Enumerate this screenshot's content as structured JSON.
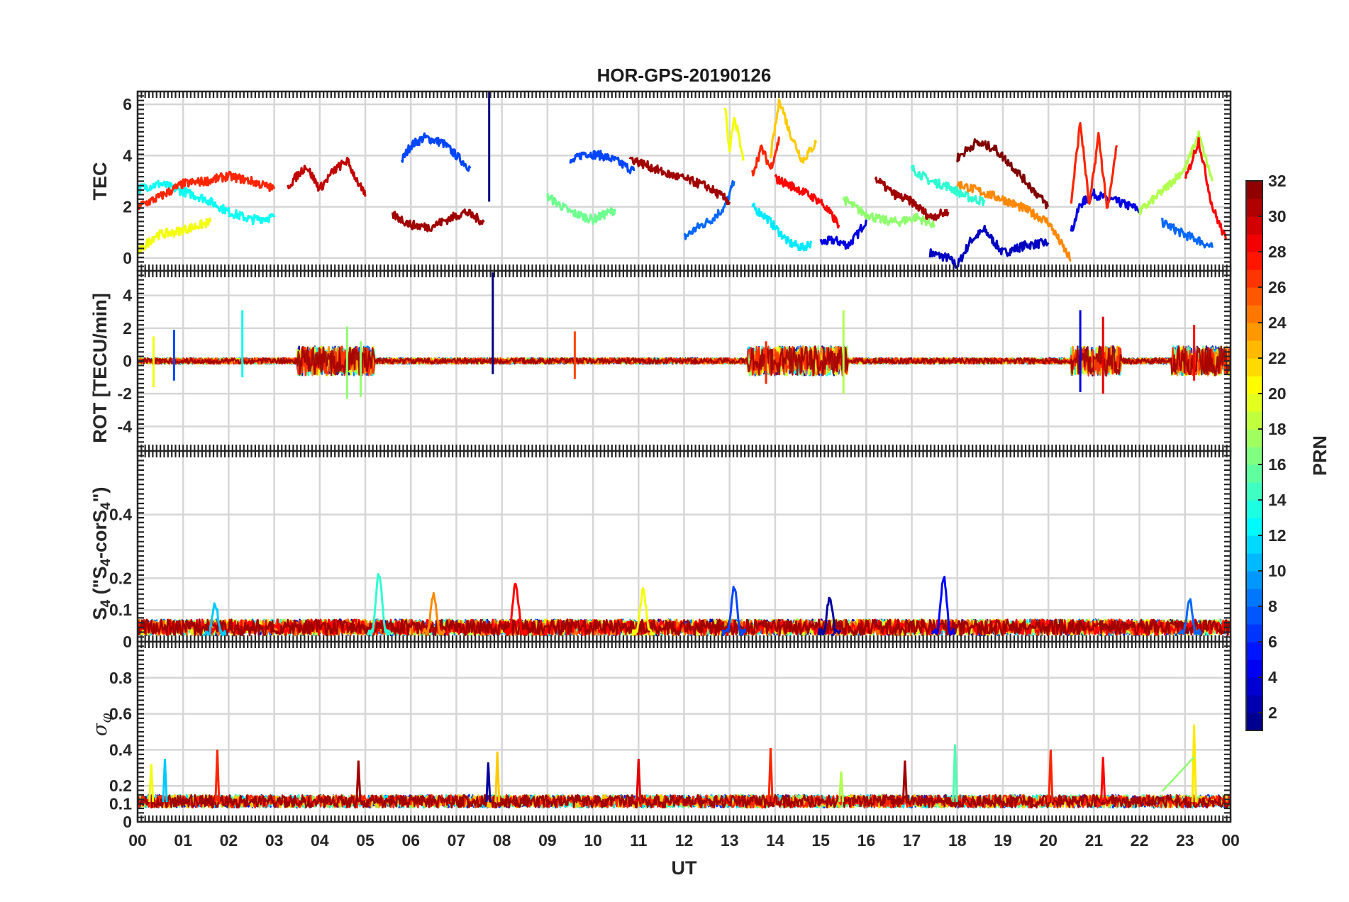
{
  "chart_data": [
    {
      "type": "line",
      "id": "tec",
      "title": "HOR-GPS-20190126",
      "xlabel": "UT",
      "ylabel": "TEC",
      "xlim": [
        0,
        24
      ],
      "ylim": [
        -0.5,
        6.5
      ],
      "yticks": [
        "0",
        "2",
        "4",
        "6"
      ],
      "series": [
        {
          "name": "PRN 3",
          "prn": 3,
          "x": [
            17.4,
            17.8,
            18.0,
            18.3,
            18.6,
            19.0,
            19.5,
            20.0
          ],
          "values": [
            0.2,
            0.0,
            -0.3,
            0.7,
            1.1,
            0.2,
            0.5,
            0.6
          ]
        },
        {
          "name": "PRN 4",
          "prn": 4,
          "x": [
            15.0,
            15.3,
            15.6,
            15.8,
            16.0
          ],
          "values": [
            0.6,
            0.7,
            0.5,
            0.9,
            1.5
          ]
        },
        {
          "name": "PRN 4b",
          "prn": 4,
          "x": [
            20.5,
            20.7,
            21.0,
            21.5,
            22.0
          ],
          "values": [
            1.0,
            2.1,
            2.5,
            2.2,
            1.9
          ]
        },
        {
          "name": "PRN 7",
          "prn": 7,
          "x": [
            5.8,
            6.0,
            6.3,
            6.7,
            7.0,
            7.3
          ],
          "values": [
            3.8,
            4.4,
            4.7,
            4.5,
            4.0,
            3.5
          ]
        },
        {
          "name": "PRN 7b",
          "prn": 7,
          "x": [
            9.5,
            9.8,
            10.2,
            10.5,
            10.9
          ],
          "values": [
            3.7,
            4.1,
            4.0,
            3.8,
            3.4
          ]
        },
        {
          "name": "PRN 8",
          "prn": 8,
          "x": [
            12.0,
            12.3,
            12.6,
            12.9,
            13.1
          ],
          "values": [
            0.8,
            1.2,
            1.5,
            2.0,
            3.0
          ]
        },
        {
          "name": "PRN 8b",
          "prn": 8,
          "x": [
            22.5,
            22.8,
            23.0,
            23.3,
            23.6
          ],
          "values": [
            1.4,
            1.1,
            0.9,
            0.7,
            0.4
          ]
        },
        {
          "name": "PRN 12",
          "prn": 12,
          "x": [
            13.5,
            13.8,
            14.0,
            14.3,
            14.6,
            14.8
          ],
          "values": [
            2.0,
            1.6,
            1.2,
            0.6,
            0.4,
            0.6
          ]
        },
        {
          "name": "PRN 13",
          "prn": 13,
          "x": [
            0.0,
            0.5,
            1.0,
            1.5,
            2.0,
            2.5,
            3.0
          ],
          "values": [
            2.7,
            2.9,
            2.6,
            2.3,
            1.8,
            1.5,
            1.6
          ]
        },
        {
          "name": "PRN 14",
          "prn": 14,
          "x": [
            17.0,
            17.4,
            17.8,
            18.2,
            18.6
          ],
          "values": [
            3.5,
            3.0,
            2.8,
            2.4,
            2.2
          ]
        },
        {
          "name": "PRN 16",
          "prn": 16,
          "x": [
            9.0,
            9.5,
            10.0,
            10.5
          ],
          "values": [
            2.4,
            1.8,
            1.5,
            1.9
          ]
        },
        {
          "name": "PRN 17",
          "prn": 17,
          "x": [
            15.5,
            15.9,
            16.3,
            16.7,
            17.1,
            17.5
          ],
          "values": [
            2.3,
            1.8,
            1.5,
            1.4,
            1.6,
            1.3
          ]
        },
        {
          "name": "PRN 18",
          "prn": 18,
          "x": [
            22.0,
            22.5,
            23.0,
            23.3,
            23.6
          ],
          "values": [
            1.8,
            2.6,
            3.5,
            4.8,
            3.0
          ]
        },
        {
          "name": "PRN 20",
          "prn": 20,
          "x": [
            0.0,
            0.4,
            0.8,
            1.2,
            1.6
          ],
          "values": [
            0.2,
            0.9,
            1.0,
            1.2,
            1.4
          ]
        },
        {
          "name": "PRN 20b",
          "prn": 20,
          "x": [
            12.9,
            13.0,
            13.1,
            13.3
          ],
          "values": [
            6.0,
            4.0,
            5.6,
            3.8
          ]
        },
        {
          "name": "PRN 22",
          "prn": 22,
          "x": [
            13.9,
            14.1,
            14.3,
            14.6,
            14.9
          ],
          "values": [
            4.0,
            6.2,
            5.0,
            3.8,
            4.5
          ]
        },
        {
          "name": "PRN 24",
          "prn": 24,
          "x": [
            18.0,
            18.5,
            19.0,
            19.5,
            20.0,
            20.5
          ],
          "values": [
            2.9,
            2.6,
            2.3,
            1.9,
            1.4,
            -0.1
          ]
        },
        {
          "name": "PRN 27",
          "prn": 27,
          "x": [
            0.0,
            0.5,
            1.0,
            1.5,
            2.0,
            2.5,
            3.0
          ],
          "values": [
            2.0,
            2.4,
            2.9,
            3.0,
            3.2,
            3.0,
            2.7
          ]
        },
        {
          "name": "PRN 27b",
          "prn": 27,
          "x": [
            13.5,
            13.7,
            13.9,
            14.1
          ],
          "values": [
            3.3,
            4.3,
            3.5,
            4.7
          ]
        },
        {
          "name": "PRN 27c",
          "prn": 27,
          "x": [
            20.5,
            20.7,
            20.9,
            21.1,
            21.3,
            21.5
          ],
          "values": [
            2.2,
            5.3,
            2.0,
            4.8,
            1.8,
            4.4
          ]
        },
        {
          "name": "PRN 28",
          "prn": 28,
          "x": [
            14.0,
            14.5,
            15.0,
            15.4
          ],
          "values": [
            3.1,
            2.7,
            2.2,
            1.3
          ]
        },
        {
          "name": "PRN 28b",
          "prn": 28,
          "x": [
            23.0,
            23.3,
            23.6,
            23.9
          ],
          "values": [
            3.0,
            4.6,
            2.0,
            0.7
          ]
        },
        {
          "name": "PRN 30",
          "prn": 30,
          "x": [
            3.3,
            3.7,
            4.0,
            4.3,
            4.6,
            5.0
          ],
          "values": [
            2.8,
            3.6,
            2.7,
            3.4,
            3.8,
            2.4
          ]
        },
        {
          "name": "PRN 31",
          "prn": 31,
          "x": [
            5.6,
            6.0,
            6.4,
            6.8,
            7.2,
            7.6
          ],
          "values": [
            1.7,
            1.3,
            1.2,
            1.5,
            1.8,
            1.4
          ]
        },
        {
          "name": "PRN 31b",
          "prn": 31,
          "x": [
            10.8,
            11.2,
            11.6,
            12.0,
            12.5,
            13.0
          ],
          "values": [
            3.9,
            3.6,
            3.3,
            3.1,
            2.8,
            2.2
          ]
        },
        {
          "name": "PRN 31c",
          "prn": 31,
          "x": [
            16.2,
            16.6,
            17.0,
            17.4,
            17.8
          ],
          "values": [
            3.1,
            2.5,
            2.2,
            1.6,
            1.8
          ]
        },
        {
          "name": "PRN 32",
          "prn": 32,
          "x": [
            18.0,
            18.4,
            18.8,
            19.2,
            19.6,
            20.0
          ],
          "values": [
            3.9,
            4.5,
            4.3,
            3.6,
            2.8,
            2.0
          ]
        }
      ]
    },
    {
      "type": "line",
      "id": "rot",
      "ylabel": "ROT [TECU/min]",
      "xlim": [
        0,
        24
      ],
      "ylim": [
        -5.5,
        5.5
      ],
      "yticks": [
        "-4",
        "-2",
        "0",
        "2",
        "4"
      ],
      "spikes": [
        {
          "x": 0.35,
          "values": [
            1.5,
            -1.6
          ],
          "prn": 20
        },
        {
          "x": 0.8,
          "values": [
            1.9,
            -1.2
          ],
          "prn": 7
        },
        {
          "x": 2.3,
          "values": [
            3.1,
            -1.0
          ],
          "prn": 13
        },
        {
          "x": 4.6,
          "values": [
            2.1,
            -2.3
          ],
          "prn": 17
        },
        {
          "x": 4.9,
          "values": [
            1.2,
            -2.2
          ],
          "prn": 17
        },
        {
          "x": 7.8,
          "values": [
            5.4,
            -0.8
          ],
          "prn": 1
        },
        {
          "x": 9.6,
          "values": [
            1.8,
            -1.1
          ],
          "prn": 26
        },
        {
          "x": 13.8,
          "values": [
            1.2,
            -1.4
          ],
          "prn": 27
        },
        {
          "x": 15.5,
          "values": [
            3.1,
            -2.0
          ],
          "prn": 18
        },
        {
          "x": 20.7,
          "values": [
            3.1,
            -1.9
          ],
          "prn": 4
        },
        {
          "x": 21.2,
          "values": [
            2.7,
            -2.0
          ],
          "prn": 29
        },
        {
          "x": 23.2,
          "values": [
            2.2,
            -1.2
          ],
          "prn": 28
        }
      ]
    },
    {
      "type": "line",
      "id": "s4",
      "ylabel": "S4 (\"S4-corS4\")",
      "ylabel_parts": [
        "S",
        "4",
        " (\"S",
        "4",
        "-corS",
        "4",
        "\")"
      ],
      "xlim": [
        0,
        24
      ],
      "ylim": [
        0,
        0.6
      ],
      "yticks": [
        "0",
        "0.1",
        "0.2",
        "0.4"
      ],
      "peaks": [
        {
          "x": 1.7,
          "value": 0.12,
          "prn": 11
        },
        {
          "x": 5.3,
          "value": 0.21,
          "prn": 14
        },
        {
          "x": 6.5,
          "value": 0.15,
          "prn": 24
        },
        {
          "x": 8.3,
          "value": 0.18,
          "prn": 28
        },
        {
          "x": 11.1,
          "value": 0.16,
          "prn": 20
        },
        {
          "x": 13.1,
          "value": 0.17,
          "prn": 7
        },
        {
          "x": 15.2,
          "value": 0.14,
          "prn": 2
        },
        {
          "x": 17.7,
          "value": 0.2,
          "prn": 5
        },
        {
          "x": 23.1,
          "value": 0.13,
          "prn": 8
        }
      ]
    },
    {
      "type": "line",
      "id": "sigma",
      "ylabel": "σφ",
      "ylabel_parts": [
        "σ",
        "φ"
      ],
      "xlim": [
        0,
        24
      ],
      "ylim": [
        0,
        1.0
      ],
      "yticks": [
        "0",
        "0.1",
        "0.2",
        "0.4",
        "0.6",
        "0.8"
      ],
      "peaks": [
        {
          "x": 0.3,
          "value": 0.32,
          "prn": 20
        },
        {
          "x": 0.6,
          "value": 0.35,
          "prn": 11
        },
        {
          "x": 1.75,
          "value": 0.4,
          "prn": 27
        },
        {
          "x": 4.85,
          "value": 0.34,
          "prn": 31
        },
        {
          "x": 7.7,
          "value": 0.33,
          "prn": 2
        },
        {
          "x": 7.9,
          "value": 0.39,
          "prn": 22
        },
        {
          "x": 11.0,
          "value": 0.35,
          "prn": 29
        },
        {
          "x": 13.9,
          "value": 0.41,
          "prn": 27
        },
        {
          "x": 15.45,
          "value": 0.28,
          "prn": 18
        },
        {
          "x": 16.85,
          "value": 0.34,
          "prn": 31
        },
        {
          "x": 17.95,
          "value": 0.43,
          "prn": 15
        },
        {
          "x": 20.05,
          "value": 0.4,
          "prn": 27
        },
        {
          "x": 21.2,
          "value": 0.36,
          "prn": 28
        },
        {
          "x": 23.2,
          "value": 0.54,
          "prn": 21
        }
      ]
    }
  ],
  "xticks": [
    "00",
    "01",
    "02",
    "03",
    "04",
    "05",
    "06",
    "07",
    "08",
    "09",
    "10",
    "11",
    "12",
    "13",
    "14",
    "15",
    "16",
    "17",
    "18",
    "19",
    "20",
    "21",
    "22",
    "23",
    "00"
  ],
  "colorbar": {
    "label": "PRN",
    "min": 1,
    "max": 32,
    "ticks": [
      "2",
      "4",
      "6",
      "8",
      "10",
      "12",
      "14",
      "16",
      "18",
      "20",
      "22",
      "24",
      "26",
      "28",
      "30",
      "32"
    ]
  }
}
